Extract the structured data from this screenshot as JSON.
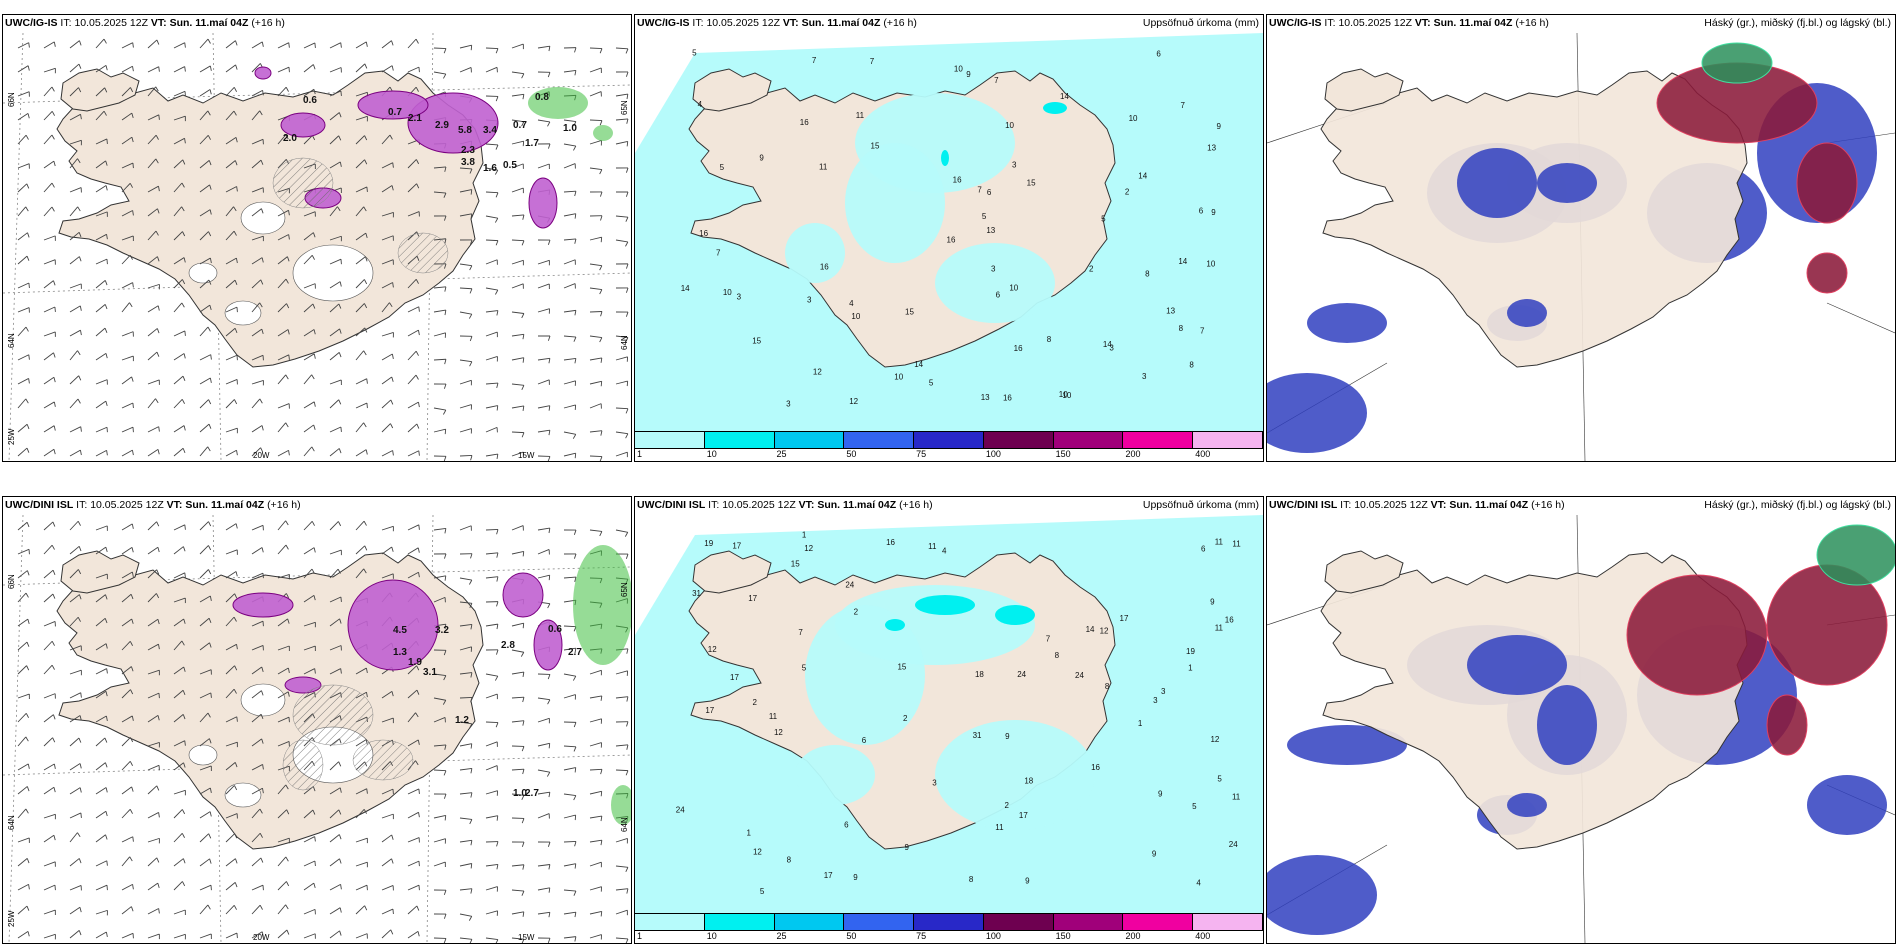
{
  "panels": [
    {
      "model": "UWC/IG-IS",
      "it_prefix": "IT:",
      "it": "10.05.2025 12Z",
      "vt_prefix": "VT:",
      "vt": "Sun. 11.maí 04Z",
      "lead": "(+16 h)",
      "subtitle": "",
      "type": "wind"
    },
    {
      "model": "UWC/IG-IS",
      "it_prefix": "IT:",
      "it": "10.05.2025 12Z",
      "vt_prefix": "VT:",
      "vt": "Sun. 11.maí 04Z",
      "lead": "(+16 h)",
      "subtitle": "Uppsöfnuð úrkoma (mm)",
      "type": "precip"
    },
    {
      "model": "UWC/IG-IS",
      "it_prefix": "IT:",
      "it": "10.05.2025 12Z",
      "vt_prefix": "VT:",
      "vt": "Sun. 11.maí 04Z",
      "lead": "(+16 h)",
      "subtitle": "Háský (gr.), miðský (fj.bl.) og lágský (bl.)",
      "type": "cloud"
    },
    {
      "model": "UWC/DINI ISL",
      "it_prefix": "IT:",
      "it": "10.05.2025 12Z",
      "vt_prefix": "VT:",
      "vt": "Sun. 11.maí 04Z",
      "lead": "(+16 h)",
      "subtitle": "",
      "type": "wind"
    },
    {
      "model": "UWC/DINI ISL",
      "it_prefix": "IT:",
      "it": "10.05.2025 12Z",
      "vt_prefix": "VT:",
      "vt": "Sun. 11.maí 04Z",
      "lead": "(+16 h)",
      "subtitle": "Uppsöfnuð úrkoma (mm)",
      "type": "precip"
    },
    {
      "model": "UWC/DINI ISL",
      "it_prefix": "IT:",
      "it": "10.05.2025 12Z",
      "vt_prefix": "VT:",
      "vt": "Sun. 11.maí 04Z",
      "lead": "(+16 h)",
      "subtitle": "Háský (gr.), miðský (fj.bl.) og lágský (bl.)",
      "type": "cloud"
    }
  ],
  "colorbar": {
    "labels": [
      "1",
      "10",
      "25",
      "50",
      "75",
      "100",
      "150",
      "200",
      "400"
    ],
    "colors": [
      "#b6fbfb",
      "#00f0f0",
      "#00c8f0",
      "#3264f0",
      "#2828c8",
      "#6e0050",
      "#a0007a",
      "#f000a0",
      "#f5b4f0"
    ]
  },
  "axes": {
    "lat_labels": [
      "66N",
      "64N",
      "25W"
    ],
    "lon_labels": [
      "20W",
      "15W"
    ],
    "lat_label_right": [
      "65N",
      "64N"
    ]
  },
  "values": {
    "wind_top": [
      "0.6",
      "0.7",
      "2.0",
      "2.1",
      "2.9",
      "5.8",
      "3.4",
      "2.3",
      "3.8",
      "1.6",
      "0.8",
      "1.0",
      "0.7",
      "1.7",
      "0.5"
    ],
    "wind_bottom": [
      "4.5",
      "3.2",
      "1.3",
      "1.9",
      "3.1",
      "2.8",
      "0.6",
      "2.7",
      "1.2",
      "1.0",
      "2.7"
    ],
    "precip_top": [
      "10",
      "15",
      "16",
      "12",
      "9",
      "6",
      "3",
      "2",
      "4",
      "5",
      "7",
      "8",
      "11",
      "13",
      "14",
      "1"
    ],
    "precip_bottom": [
      "24",
      "31",
      "18",
      "19",
      "16",
      "17",
      "14",
      "12",
      "11",
      "10",
      "9",
      "8",
      "7",
      "6",
      "5",
      "4",
      "3",
      "2",
      "1",
      "15"
    ]
  },
  "colors": {
    "land": "#f2e6da",
    "precip_light": "#b6fbfb",
    "precip_mid": "#00f0f0",
    "wind_magenta": "#c060d0",
    "wind_green": "#40c040",
    "cloud_high": "#2a8f5a",
    "cloud_mid": "#8b1a3a",
    "cloud_low": "#3040c0"
  }
}
